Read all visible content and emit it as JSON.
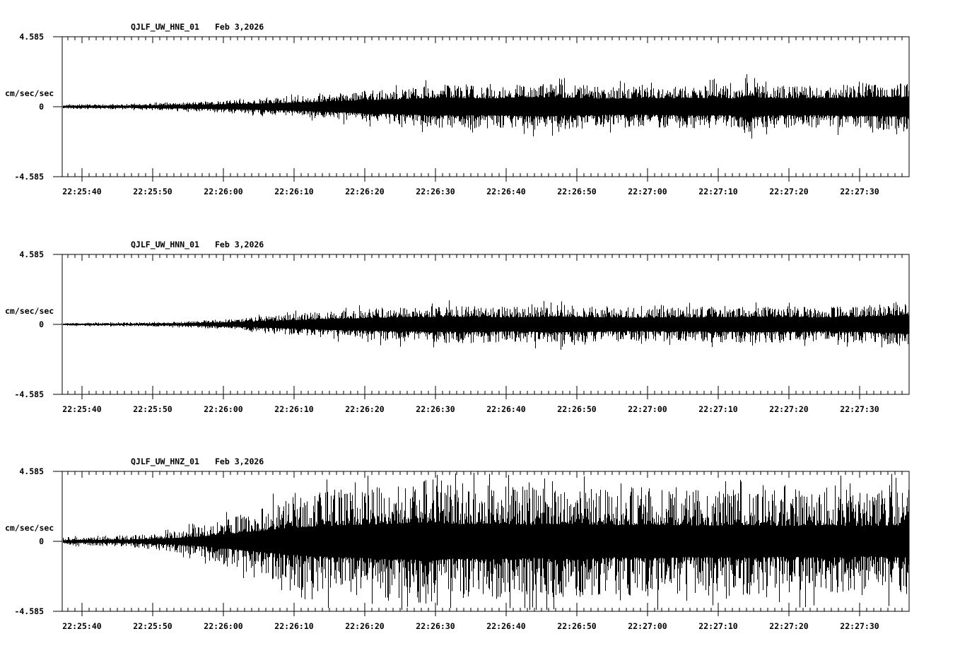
{
  "palette": {
    "ink": "#000000",
    "background": "#ffffff"
  },
  "chart_data": [
    {
      "type": "line",
      "subtype": "seismogram",
      "title": "QJLF_UW_HNE_01",
      "date": "Feb 3,2026",
      "ylabel": "cm/sec/sec",
      "ylim": [
        -4.585,
        4.585
      ],
      "ytick_labels": [
        "4.585",
        "0",
        "-4.585"
      ],
      "ytick_values": [
        4.585,
        0,
        -4.585
      ],
      "xtick_labels": [
        "22:25:40",
        "22:25:50",
        "22:26:00",
        "22:26:10",
        "22:26:20",
        "22:26:30",
        "22:26:40",
        "22:26:50",
        "22:27:00",
        "22:27:10",
        "22:27:20",
        "22:27:30"
      ],
      "xtick_seconds": [
        2.8,
        12.8,
        22.8,
        32.8,
        42.8,
        52.8,
        62.8,
        72.8,
        82.8,
        92.8,
        102.8,
        112.8
      ],
      "minor_tick_interval_seconds": 1,
      "minor_tick_start_seconds": 0.8,
      "time_span_seconds": 119.8,
      "grid": false,
      "envelope_amplitude_cm_s2": [
        [
          0,
          0.15
        ],
        [
          8,
          0.18
        ],
        [
          16,
          0.26
        ],
        [
          24,
          0.42
        ],
        [
          32,
          0.62
        ],
        [
          40,
          0.95
        ],
        [
          48,
          1.25
        ],
        [
          54,
          1.45
        ],
        [
          60,
          1.35
        ],
        [
          66,
          1.55
        ],
        [
          72,
          1.45
        ],
        [
          78,
          1.3
        ],
        [
          84,
          1.35
        ],
        [
          90,
          1.45
        ],
        [
          95,
          1.35
        ],
        [
          97,
          1.8
        ],
        [
          99,
          1.45
        ],
        [
          104,
          1.35
        ],
        [
          110,
          1.45
        ],
        [
          115,
          1.55
        ],
        [
          119.8,
          1.6
        ]
      ],
      "noise": {
        "seed": 101,
        "core_fraction": 0.4,
        "spike_probability": 0.05
      }
    },
    {
      "type": "line",
      "subtype": "seismogram",
      "title": "QJLF_UW_HNN_01",
      "date": "Feb 3,2026",
      "ylabel": "cm/sec/sec",
      "ylim": [
        -4.585,
        4.585
      ],
      "ytick_labels": [
        "4.585",
        "0",
        "-4.585"
      ],
      "ytick_values": [
        4.585,
        0,
        -4.585
      ],
      "xtick_labels": [
        "22:25:40",
        "22:25:50",
        "22:26:00",
        "22:26:10",
        "22:26:20",
        "22:26:30",
        "22:26:40",
        "22:26:50",
        "22:27:00",
        "22:27:10",
        "22:27:20",
        "22:27:30"
      ],
      "xtick_seconds": [
        2.8,
        12.8,
        22.8,
        32.8,
        42.8,
        52.8,
        62.8,
        72.8,
        82.8,
        92.8,
        102.8,
        112.8
      ],
      "minor_tick_interval_seconds": 1,
      "minor_tick_start_seconds": 0.8,
      "time_span_seconds": 119.8,
      "grid": false,
      "envelope_amplitude_cm_s2": [
        [
          0,
          0.1
        ],
        [
          8,
          0.12
        ],
        [
          16,
          0.16
        ],
        [
          22,
          0.3
        ],
        [
          28,
          0.5
        ],
        [
          34,
          0.75
        ],
        [
          40,
          0.95
        ],
        [
          46,
          1.1
        ],
        [
          52,
          1.2
        ],
        [
          58,
          1.25
        ],
        [
          64,
          1.15
        ],
        [
          70,
          1.3
        ],
        [
          76,
          1.15
        ],
        [
          82,
          1.1
        ],
        [
          88,
          1.15
        ],
        [
          94,
          1.2
        ],
        [
          100,
          1.25
        ],
        [
          106,
          1.15
        ],
        [
          112,
          1.2
        ],
        [
          119.8,
          1.55
        ]
      ],
      "noise": {
        "seed": 202,
        "core_fraction": 0.4,
        "spike_probability": 0.045
      }
    },
    {
      "type": "line",
      "subtype": "seismogram",
      "title": "QJLF_UW_HNZ_01",
      "date": "Feb 3,2026",
      "ylabel": "cm/sec/sec",
      "ylim": [
        -4.585,
        4.585
      ],
      "ytick_labels": [
        "4.585",
        "0",
        "-4.585"
      ],
      "ytick_values": [
        4.585,
        0,
        -4.585
      ],
      "xtick_labels": [
        "22:25:40",
        "22:25:50",
        "22:26:00",
        "22:26:10",
        "22:26:20",
        "22:26:30",
        "22:26:40",
        "22:26:50",
        "22:27:00",
        "22:27:10",
        "22:27:20",
        "22:27:30"
      ],
      "xtick_seconds": [
        2.8,
        12.8,
        22.8,
        32.8,
        42.8,
        52.8,
        62.8,
        72.8,
        82.8,
        92.8,
        102.8,
        112.8
      ],
      "minor_tick_interval_seconds": 1,
      "minor_tick_start_seconds": 0.8,
      "time_span_seconds": 119.8,
      "grid": false,
      "envelope_amplitude_cm_s2": [
        [
          0,
          0.25
        ],
        [
          5,
          0.3
        ],
        [
          10,
          0.4
        ],
        [
          15,
          0.65
        ],
        [
          20,
          1.1
        ],
        [
          24,
          1.7
        ],
        [
          28,
          2.3
        ],
        [
          32,
          2.9
        ],
        [
          36,
          3.3
        ],
        [
          42,
          3.6
        ],
        [
          48,
          3.9
        ],
        [
          52,
          4.1
        ],
        [
          56,
          3.7
        ],
        [
          60,
          3.9
        ],
        [
          66,
          3.6
        ],
        [
          72,
          3.85
        ],
        [
          78,
          3.5
        ],
        [
          84,
          3.65
        ],
        [
          90,
          3.4
        ],
        [
          96,
          3.6
        ],
        [
          102,
          3.35
        ],
        [
          108,
          3.55
        ],
        [
          114,
          3.25
        ],
        [
          119.8,
          3.6
        ]
      ],
      "noise": {
        "seed": 303,
        "core_fraction": 0.3,
        "spike_probability": 0.06
      }
    }
  ]
}
